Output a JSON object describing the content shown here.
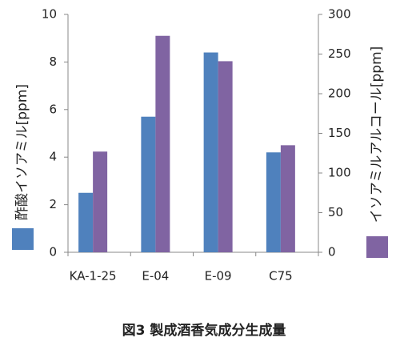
{
  "chart_data": {
    "type": "bar",
    "caption": "図3  製成酒香気成分生成量",
    "categories": [
      "KA-1-25",
      "E-04",
      "E-09",
      "C75"
    ],
    "series": [
      {
        "name": "酢酸イソアミル[ppm]",
        "color": "#4f81bd",
        "values": [
          2.5,
          5.7,
          8.4,
          4.2
        ]
      },
      {
        "name": "イソアミルアルコール[ppm]",
        "color": "#8064a2",
        "axis": "y2",
        "values": [
          127,
          273,
          241,
          135
        ]
      }
    ],
    "ylim": [
      0,
      10
    ],
    "yticks": [
      0,
      2,
      4,
      6,
      8,
      10
    ],
    "y2lim": [
      0,
      300
    ],
    "y2ticks": [
      0,
      50,
      100,
      150,
      200,
      250,
      300
    ]
  }
}
